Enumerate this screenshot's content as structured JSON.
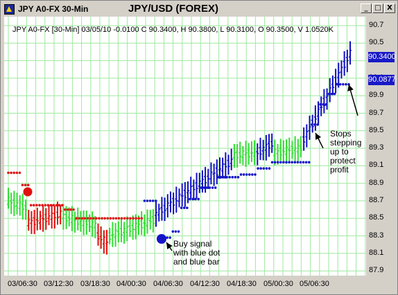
{
  "window": {
    "title_left": "JPY A0-FX 30-Min",
    "title_center": "JPY/USD (FOREX)",
    "buttons": {
      "minimize": "_",
      "maximize": "□",
      "close": "X"
    }
  },
  "info_line": "JPY A0-FX [30-Min] 03/05/10 -0.0100 C 90.3400, H 90.3800, L 90.3100, O 90.3500, V 1.0520K",
  "price_tags": {
    "last": "90.3400",
    "stop": "90.0877"
  },
  "annotations": {
    "buy": [
      "Buy signal",
      "with blue dot",
      "and blue bar"
    ],
    "stops": [
      "Stops",
      "stepping",
      "up to",
      "protect",
      "profit"
    ]
  },
  "colors": {
    "bull_bar": "#33dd33",
    "bear_bar": "#e01010",
    "blue_bar": "#1010c0",
    "red_dot": "#e01010",
    "blue_dot": "#1515c8",
    "grid": "#9ee89e"
  },
  "chart_data": {
    "type": "bar",
    "ylim": [
      87.9,
      90.75
    ],
    "y_ticks": [
      "90.7",
      "90.5",
      "90.3",
      "90.1",
      "89.9",
      "89.7",
      "89.5",
      "89.3",
      "89.1",
      "88.9",
      "88.7",
      "88.5",
      "88.3",
      "88.1",
      "87.9"
    ],
    "x_ticks": [
      "03/06:30",
      "03/12:30",
      "03/18:30",
      "04/00:30",
      "04/06:30",
      "04/12:30",
      "04/18:30",
      "05/00:30",
      "05/06:30"
    ],
    "segments": [
      {
        "phase": "green",
        "n": 7,
        "start": 88.7,
        "end": 88.62
      },
      {
        "phase": "red",
        "n": 12,
        "start": 88.45,
        "end": 88.55
      },
      {
        "phase": "green",
        "n": 12,
        "start": 88.52,
        "end": 88.42
      },
      {
        "phase": "red",
        "n": 4,
        "start": 88.3,
        "end": 88.22
      },
      {
        "phase": "green",
        "n": 16,
        "start": 88.3,
        "end": 88.48
      },
      {
        "phase": "blue",
        "n": 27,
        "start": 88.55,
        "end": 89.15
      },
      {
        "phase": "green",
        "n": 8,
        "start": 89.22,
        "end": 89.25
      },
      {
        "phase": "blue",
        "n": 6,
        "start": 89.25,
        "end": 89.35
      },
      {
        "phase": "green",
        "n": 10,
        "start": 89.25,
        "end": 89.3
      },
      {
        "phase": "blue",
        "n": 17,
        "start": 89.4,
        "end": 90.38
      }
    ],
    "stop_dots": [
      {
        "color": "red",
        "n": 5,
        "level": 89.02
      },
      {
        "color": "red",
        "n": 3,
        "level": 88.88
      },
      {
        "color": "red",
        "n": 12,
        "level": 88.65
      },
      {
        "color": "red",
        "n": 4,
        "level": 88.6
      },
      {
        "color": "red",
        "n": 10,
        "level": 88.5
      },
      {
        "color": "red",
        "n": 14,
        "level": 88.5
      },
      {
        "color": "blue",
        "n": 5,
        "level": 88.7
      },
      {
        "color": "blue",
        "n": 5,
        "level": 88.28
      },
      {
        "color": "blue",
        "n": 3,
        "level": 88.35
      },
      {
        "color": "blue",
        "n": 3,
        "level": 88.62
      },
      {
        "color": "blue",
        "n": 4,
        "level": 88.72
      },
      {
        "color": "blue",
        "n": 6,
        "level": 88.85
      },
      {
        "color": "blue",
        "n": 8,
        "level": 88.97
      },
      {
        "color": "blue",
        "n": 6,
        "level": 89.0
      },
      {
        "color": "blue",
        "n": 5,
        "level": 89.07
      },
      {
        "color": "blue",
        "n": 14,
        "level": 89.14
      },
      {
        "color": "blue",
        "n": 3,
        "level": 89.57
      },
      {
        "color": "blue",
        "n": 3,
        "level": 89.8
      },
      {
        "color": "blue",
        "n": 3,
        "level": 89.92
      },
      {
        "color": "blue",
        "n": 5,
        "level": 90.03
      }
    ]
  }
}
